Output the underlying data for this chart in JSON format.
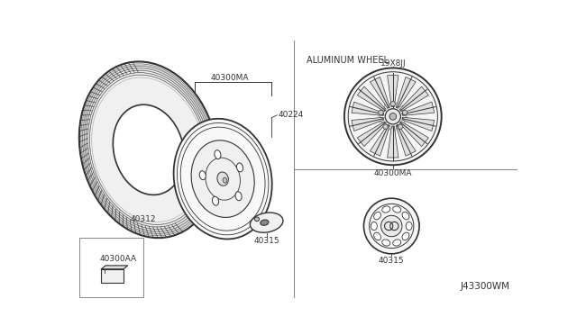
{
  "bg_color": "#ffffff",
  "line_color": "#333333",
  "text_color": "#333333",
  "title": "ALUMINUM WHEEL",
  "label_19x8JJ": "19X8JJ",
  "label_40300MA_top": "40300MA",
  "label_40300MA_bot": "40300MA",
  "label_40224": "40224",
  "label_40312": "40312",
  "label_40315_left": "40315",
  "label_40315_right": "40315",
  "label_40300AA": "40300AA",
  "label_j43300wm": "J43300WM",
  "font_size_small": 6.5,
  "font_size_title": 7.0,
  "font_size_code": 7.5
}
